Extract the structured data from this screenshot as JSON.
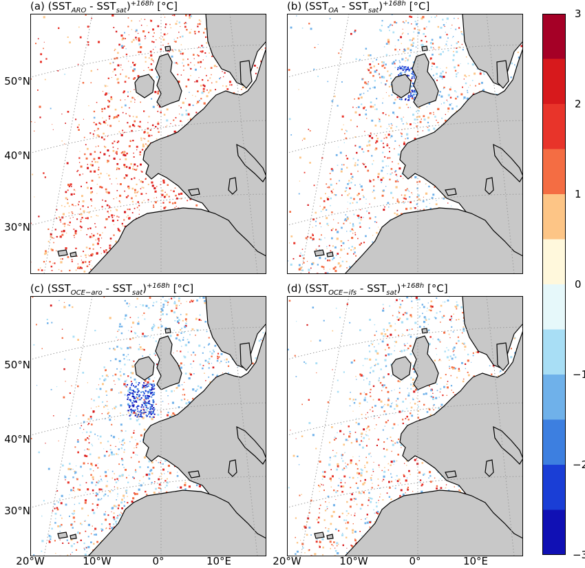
{
  "panels": [
    {
      "id": "a",
      "prefix": "(a) (SST",
      "sub1": "ARO",
      "mid": " - SST",
      "sub2": "sat",
      "sup": "+168h",
      "unit": " [°C]",
      "pattern": "warm"
    },
    {
      "id": "b",
      "prefix": "(b) (SST",
      "sub1": "OA",
      "mid": " - SST",
      "sub2": "sat",
      "sup": "+168h",
      "unit": " [°C]",
      "pattern": "mixed"
    },
    {
      "id": "c",
      "prefix": "(c) (SST",
      "sub1": "OCE−aro",
      "mid": " - SST",
      "sub2": "sat",
      "sup": "+168h",
      "unit": " [°C]",
      "pattern": "cool"
    },
    {
      "id": "d",
      "prefix": "(d) (SST",
      "sub1": "OCE−ifs",
      "mid": " - SST",
      "sub2": "sat",
      "sup": "+168h",
      "unit": " [°C]",
      "pattern": "mixed2"
    }
  ],
  "lat_labels": [
    "50°N",
    "40°N",
    "30°N"
  ],
  "lon_labels": [
    "20°W",
    "10°W",
    "0°",
    "10°E"
  ],
  "colorbar": {
    "ticks": [
      "3",
      "2",
      "1",
      "0",
      "−1",
      "−2",
      "−3"
    ],
    "min": -3,
    "max": 3,
    "colors": [
      "#a50026",
      "#d7191c",
      "#e8342a",
      "#f46d43",
      "#fdc586",
      "#fff8dc",
      "#e6f8fa",
      "#a8def5",
      "#6fb1ea",
      "#3d7fe0",
      "#1a3ed6",
      "#1010b4"
    ]
  },
  "colors": {
    "land": "#c8c8c8",
    "sea": "#ffffff",
    "coast": "#000000",
    "grid": "#999999"
  }
}
